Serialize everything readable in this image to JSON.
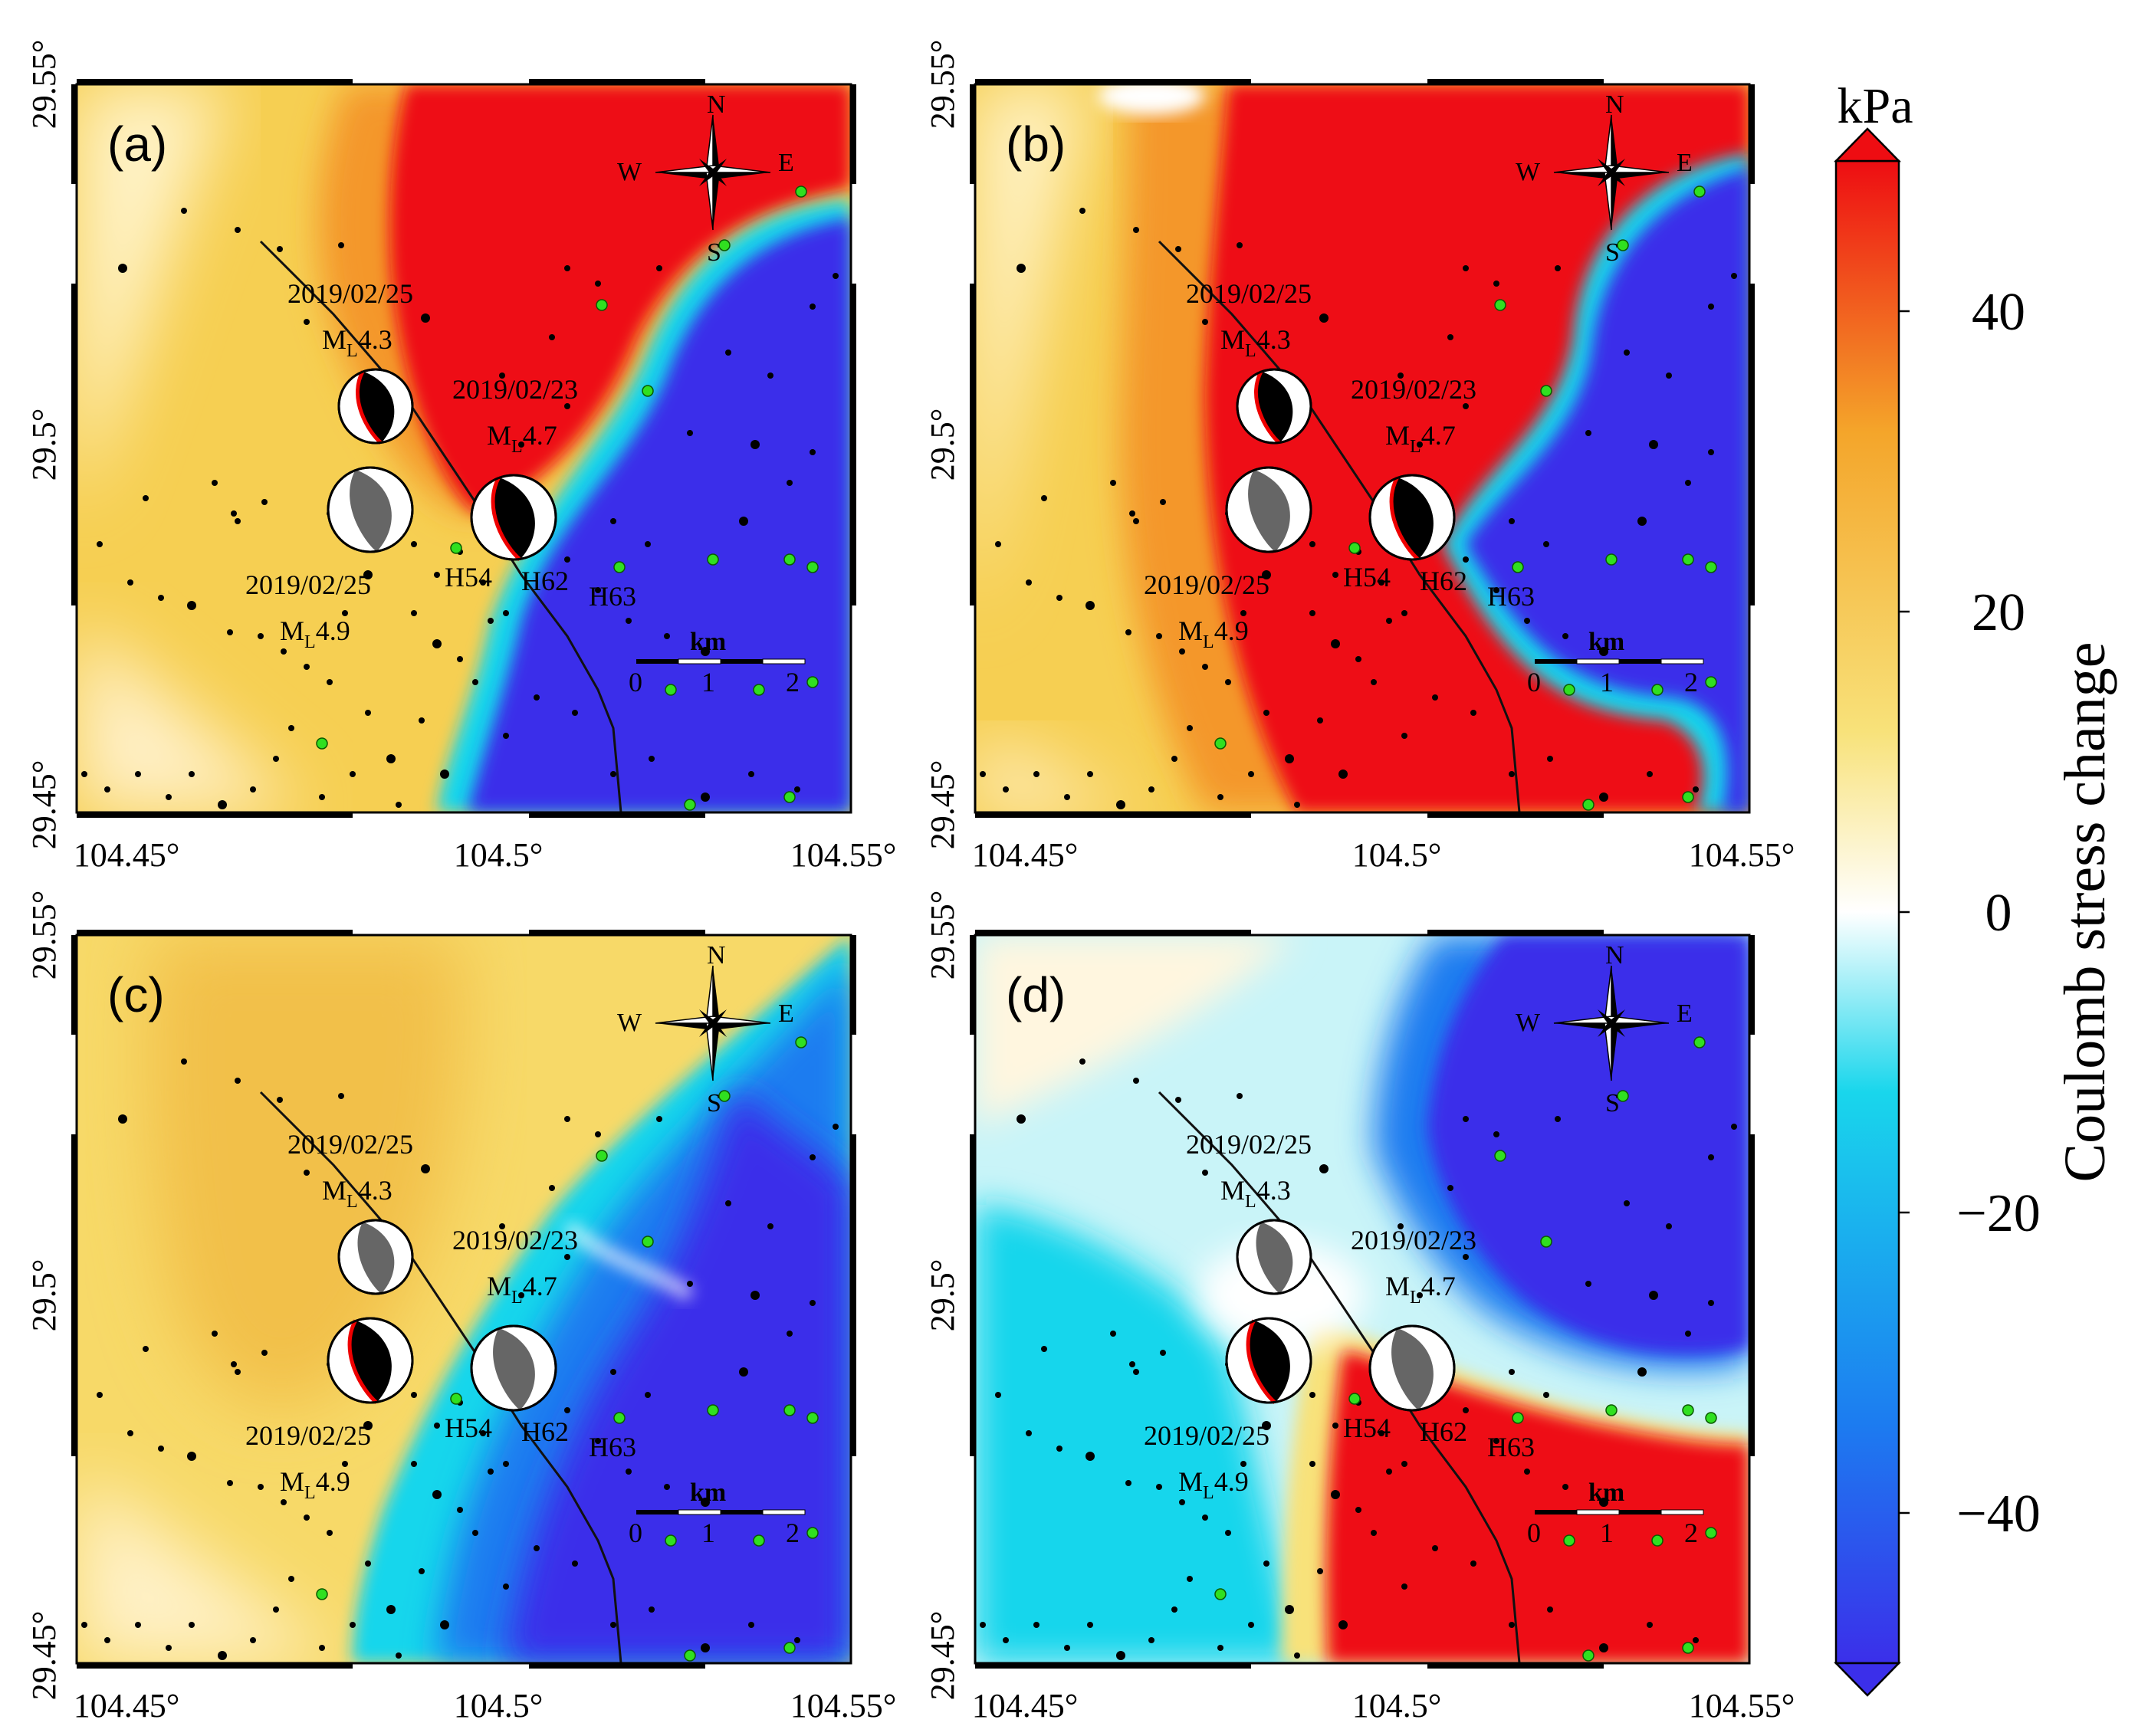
{
  "panels": [
    {
      "label": "(a)",
      "field": "a",
      "mechanisms": {
        "top": "black",
        "left": "gray",
        "right": "black"
      }
    },
    {
      "label": "(b)",
      "field": "b",
      "mechanisms": {
        "top": "black",
        "left": "gray",
        "right": "black"
      }
    },
    {
      "label": "(c)",
      "field": "c",
      "mechanisms": {
        "top": "gray",
        "left": "black",
        "right": "gray"
      }
    },
    {
      "label": "(d)",
      "field": "d",
      "mechanisms": {
        "top": "gray",
        "left": "black",
        "right": "gray"
      }
    }
  ],
  "axes": {
    "x_ticks": [
      "104.45°",
      "104.5°",
      "104.55°"
    ],
    "y_ticks": [
      "29.55°",
      "29.5°",
      "29.45°"
    ]
  },
  "events": {
    "top_date": "2019/02/25",
    "top_mag": "4.3",
    "right_date": "2019/02/23",
    "right_mag": "4.7",
    "left_date": "2019/02/25",
    "left_mag": "4.9",
    "mag_prefix": "M",
    "mag_sub": "L"
  },
  "stations": [
    "H54",
    "H62",
    "H63"
  ],
  "compass": {
    "n": "N",
    "s": "S",
    "e": "E",
    "w": "W"
  },
  "scalebar": {
    "title": "km",
    "labels": [
      "0",
      "1",
      "2"
    ]
  },
  "colorbar": {
    "unit": "kPa",
    "title": "Coulomb stress change",
    "range": [
      -50,
      50
    ],
    "ticks": [
      {
        "value": 40,
        "label": "40"
      },
      {
        "value": 20,
        "label": "20"
      },
      {
        "value": 0,
        "label": "0"
      },
      {
        "value": -20,
        "label": "−20"
      },
      {
        "value": -40,
        "label": "−40"
      }
    ],
    "colors": [
      "#3b2fea",
      "#1c7cf0",
      "#19d6ec",
      "#ffffff",
      "#f8e27a",
      "#f4a52a",
      "#ee0d12"
    ]
  }
}
